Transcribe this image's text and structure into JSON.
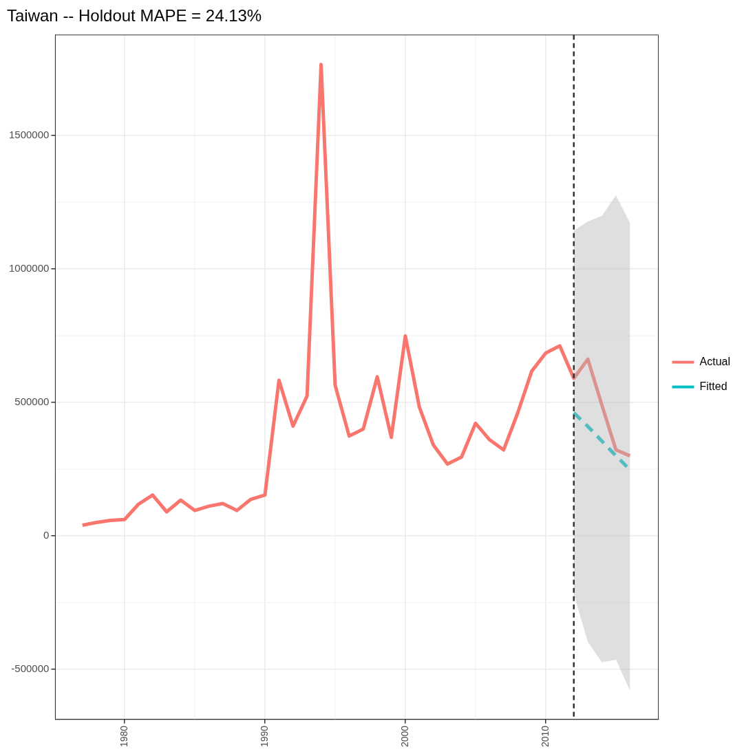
{
  "chart_data": {
    "type": "line",
    "title": "Taiwan -- Holdout MAPE = 24.13%",
    "x": [
      1977,
      1978,
      1979,
      1980,
      1981,
      1982,
      1983,
      1984,
      1985,
      1986,
      1987,
      1988,
      1989,
      1990,
      1991,
      1992,
      1993,
      1994,
      1995,
      1996,
      1997,
      1998,
      1999,
      2000,
      2001,
      2002,
      2003,
      2004,
      2005,
      2006,
      2007,
      2008,
      2009,
      2010,
      2011,
      2012,
      2013,
      2014,
      2015,
      2016
    ],
    "series": [
      {
        "name": "Actual",
        "color": "#f8766d",
        "line_style": "solid",
        "values": [
          40000,
          50000,
          58000,
          61000,
          119000,
          153000,
          90000,
          134000,
          95000,
          111000,
          121000,
          95000,
          137000,
          153000,
          583000,
          411000,
          524000,
          1766000,
          564000,
          374000,
          400000,
          596000,
          369000,
          749000,
          482000,
          340000,
          269000,
          295000,
          422000,
          360000,
          322000,
          460000,
          617000,
          685000,
          712000,
          590000,
          662000,
          490000,
          322000,
          300000
        ]
      },
      {
        "name": "Fitted",
        "color": "#00bfc4",
        "line_style": "dashed",
        "x": [
          2012,
          2013,
          2014,
          2015,
          2016
        ],
        "values": [
          461000,
          410000,
          355000,
          300000,
          248000
        ],
        "lower": [
          -219000,
          -398000,
          -474000,
          -464000,
          -580000
        ],
        "upper": [
          1144000,
          1178000,
          1199000,
          1276000,
          1173000
        ]
      }
    ],
    "xlim": [
      1975.07,
      2018.02
    ],
    "xticks": [
      1980,
      1990,
      2000,
      2010
    ],
    "ylim": [
      -688000,
      1877000
    ],
    "yticks": [
      -500000,
      0,
      500000,
      1000000,
      1500000
    ],
    "ref_lines": [
      {
        "axis": "x",
        "value": 2012,
        "color": "#333333",
        "line_style": "dashed"
      }
    ],
    "grid": true,
    "legend": "right",
    "marker": "none"
  }
}
